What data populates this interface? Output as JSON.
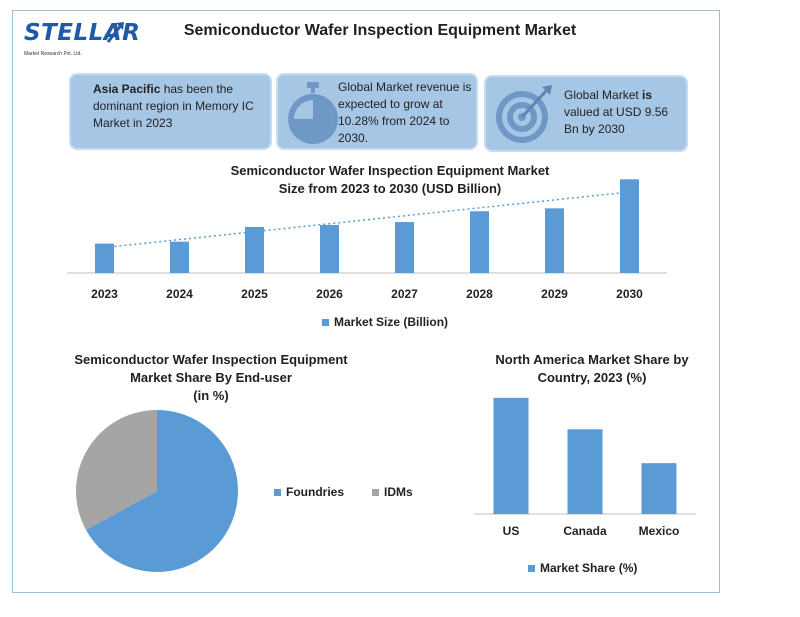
{
  "brand": {
    "name": "STELLAR",
    "tagline": "Market Research Pvt. Ltd."
  },
  "title": "Semiconductor Wafer Inspection Equipment Market",
  "cards": [
    {
      "bold": "Asia Pacific",
      "text": " has been the dominant region in Memory IC Market in 2023",
      "icon": "none"
    },
    {
      "text": "Global Market revenue is expected to grow at 10.28% from 2024 to 2030.",
      "icon": "stopwatch-icon"
    },
    {
      "pre": "Global Market ",
      "bold": "is",
      "text": " valued at USD 9.56 Bn by 2030",
      "icon": "target-icon"
    }
  ],
  "colors": {
    "bar": "#5b9bd5",
    "grey": "#a5a5a5",
    "card": "#a6c6e6"
  },
  "chart_data": [
    {
      "type": "bar",
      "title_line1": "Semiconductor Wafer Inspection Equipment Market",
      "title_line2": "Size from 2023 to 2030 (USD Billion)",
      "categories": [
        "2023",
        "2024",
        "2025",
        "2026",
        "2027",
        "2028",
        "2029",
        "2030"
      ],
      "series": [
        {
          "name": "Market Size (Billion)",
          "values": [
            3.0,
            3.2,
            4.7,
            4.9,
            5.2,
            6.3,
            6.6,
            9.56
          ]
        }
      ],
      "trendline": "dotted linear",
      "ylim": [
        0,
        10
      ],
      "grid": false,
      "legend": "bottom"
    },
    {
      "type": "pie",
      "title_line1": "Semiconductor Wafer Inspection Equipment",
      "title_line2": "Market Share By End-user",
      "title_line3": "(in %)",
      "categories": [
        "Foundries",
        "IDMs"
      ],
      "values": [
        67,
        33
      ],
      "legend": "right"
    },
    {
      "type": "bar",
      "title_line1": "North America Market Share by",
      "title_line2": "Country, 2023 (%)",
      "categories": [
        "US",
        "Canada",
        "Mexico"
      ],
      "series": [
        {
          "name": "Market Share (%)",
          "values": [
            48,
            35,
            21
          ]
        }
      ],
      "ylim": [
        0,
        50
      ],
      "grid": false,
      "legend": "bottom"
    }
  ]
}
